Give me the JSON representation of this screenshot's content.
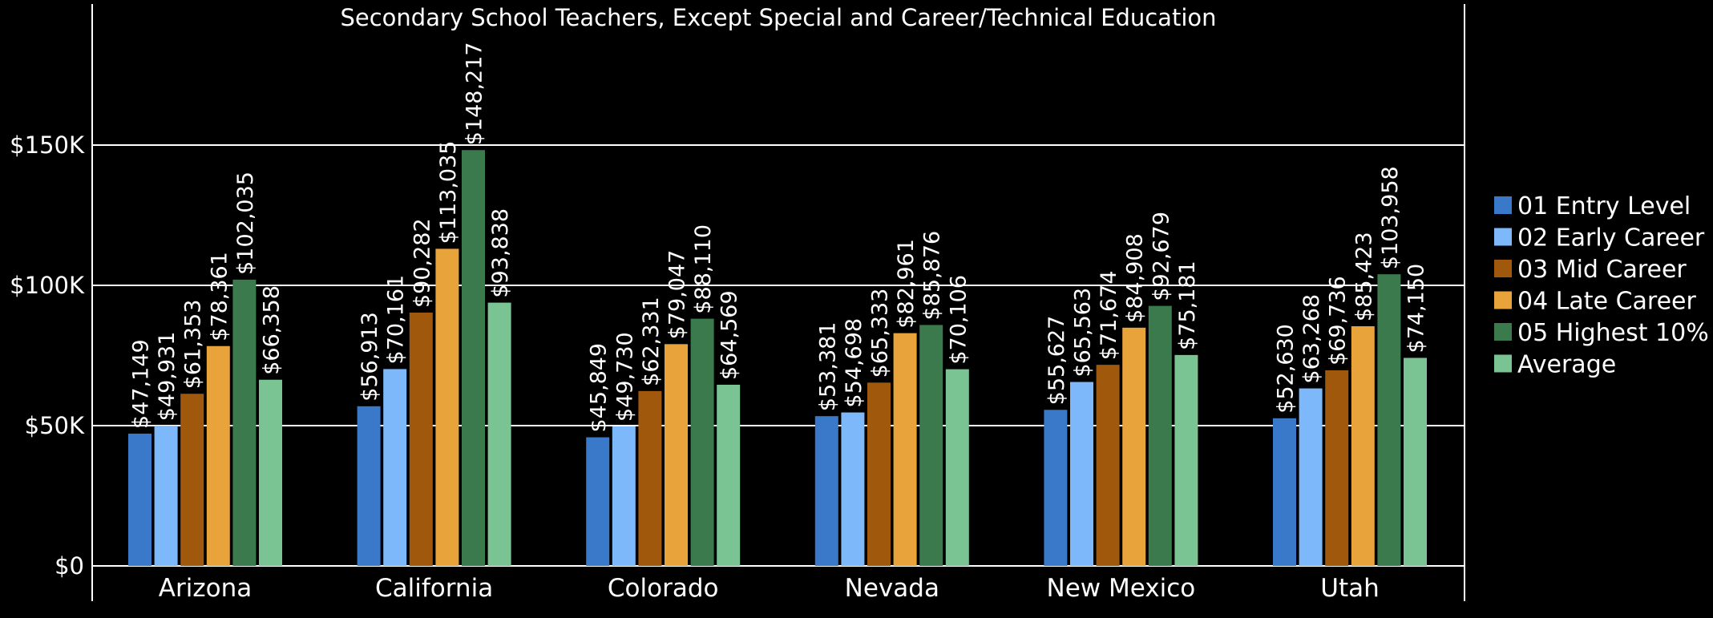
{
  "chart_data": {
    "type": "bar",
    "title": "Secondary School Teachers, Except Special and Career/Technical Education",
    "xlabel": "",
    "ylabel": "",
    "ylim": [
      0,
      200000
    ],
    "y_ticks": [
      {
        "value": 0,
        "label": "$0"
      },
      {
        "value": 50000,
        "label": "$50K"
      },
      {
        "value": 100000,
        "label": "$100K"
      },
      {
        "value": 150000,
        "label": "$150K"
      }
    ],
    "grid": true,
    "legend_position": "right",
    "categories": [
      "Arizona",
      "California",
      "Colorado",
      "Nevada",
      "New Mexico",
      "Utah"
    ],
    "series": [
      {
        "name": "01 Entry Level",
        "color": "#3a78c9",
        "values": [
          47149,
          56913,
          45849,
          53381,
          55627,
          52630
        ],
        "labels": [
          "$47,149",
          "$56,913",
          "$45,849",
          "$53,381",
          "$55,627",
          "$52,630"
        ]
      },
      {
        "name": "02 Early Career",
        "color": "#7db8fa",
        "values": [
          49931,
          70161,
          49730,
          54698,
          65563,
          63268
        ],
        "labels": [
          "$49,931",
          "$70,161",
          "$49,730",
          "$54,698",
          "$65,563",
          "$63,268"
        ]
      },
      {
        "name": "03 Mid Career",
        "color": "#a0580c",
        "values": [
          61353,
          90282,
          62331,
          65333,
          71674,
          69736
        ],
        "labels": [
          "$61,353",
          "$90,282",
          "$62,331",
          "$65,333",
          "$71,674",
          "$69,736"
        ]
      },
      {
        "name": "04 Late Career",
        "color": "#e8a33a",
        "values": [
          78361,
          113035,
          79047,
          82961,
          84908,
          85423
        ],
        "labels": [
          "$78,361",
          "$113,035",
          "$79,047",
          "$82,961",
          "$84,908",
          "$85,423"
        ]
      },
      {
        "name": "05 Highest 10%",
        "color": "#3a7a4c",
        "values": [
          102035,
          148217,
          88110,
          85876,
          92679,
          103958
        ],
        "labels": [
          "$102,035",
          "$148,217",
          "$88,110",
          "$85,876",
          "$92,679",
          "$103,958"
        ]
      },
      {
        "name": "Average",
        "color": "#7ac493",
        "values": [
          66358,
          93838,
          64569,
          70106,
          75181,
          74150
        ],
        "labels": [
          "$66,358",
          "$93,838",
          "$64,569",
          "$70,106",
          "$75,181",
          "$74,150"
        ]
      }
    ]
  }
}
